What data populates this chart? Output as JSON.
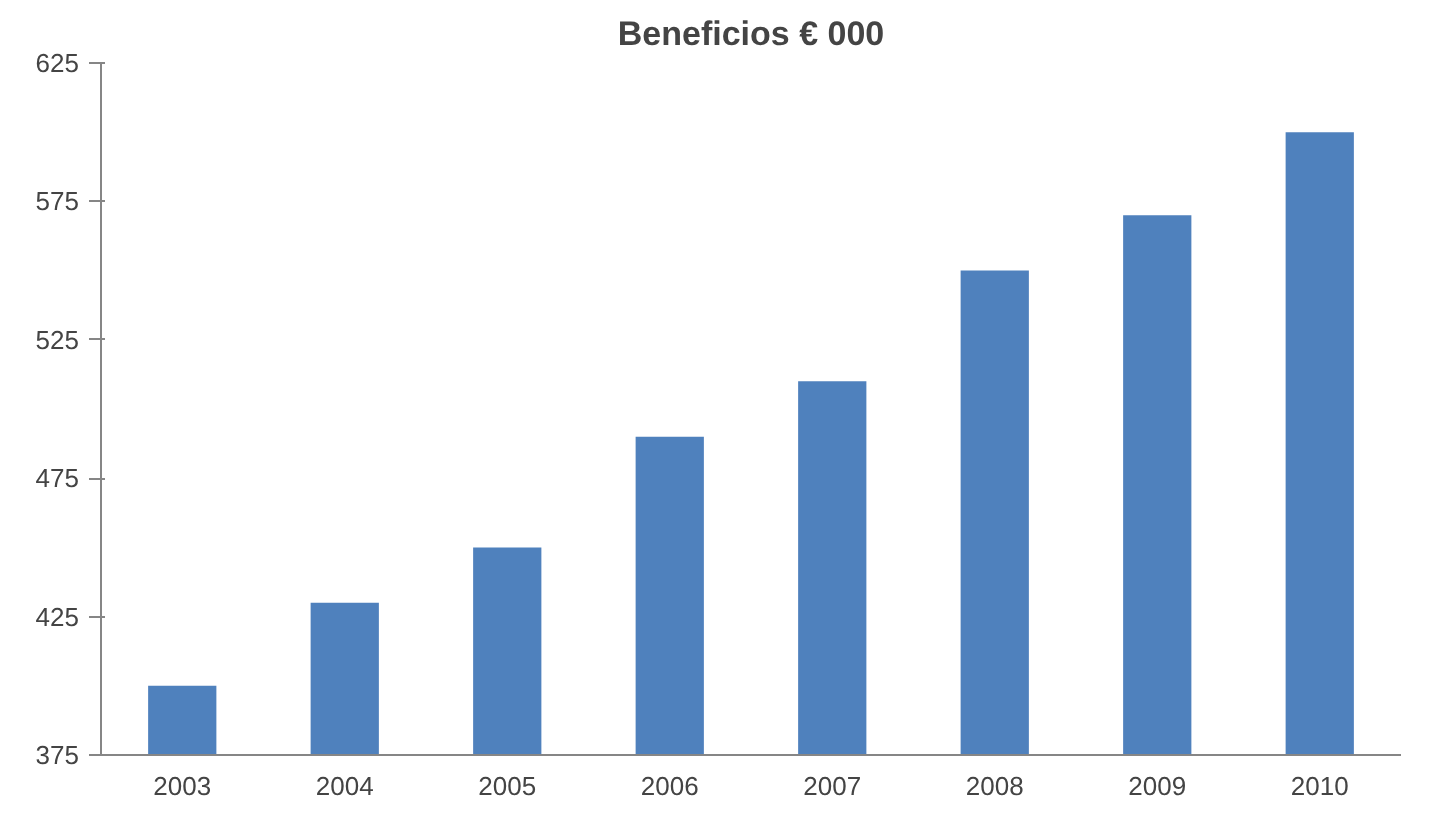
{
  "chart_data": {
    "type": "bar",
    "title": "Beneficios € 000",
    "categories": [
      "2003",
      "2004",
      "2005",
      "2006",
      "2007",
      "2008",
      "2009",
      "2010"
    ],
    "values": [
      400,
      430,
      450,
      490,
      510,
      550,
      570,
      600
    ],
    "color": "#4f81bd",
    "ylim": [
      375,
      625
    ],
    "yticks": [
      375,
      425,
      475,
      525,
      575,
      625
    ],
    "grid": false
  }
}
